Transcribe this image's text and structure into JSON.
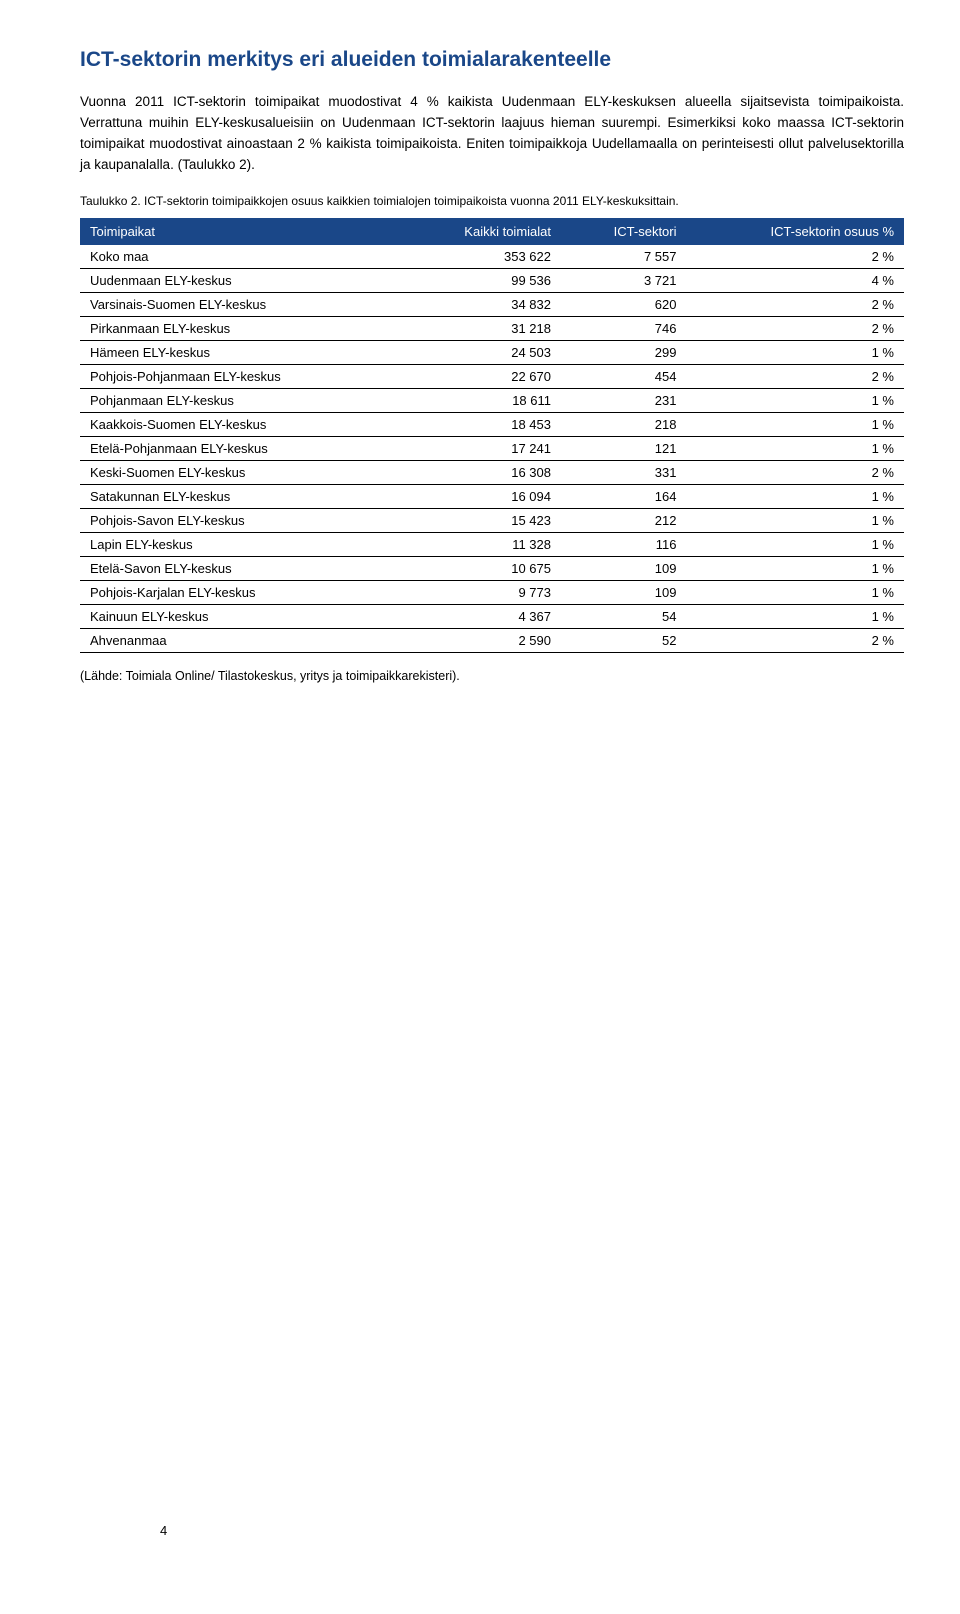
{
  "heading": "ICT-sektorin merkitys eri alueiden toimialarakenteelle",
  "paragraph": "Vuonna 2011 ICT-sektorin toimipaikat muodostivat 4 % kaikista Uudenmaan ELY-keskuksen alueella sijaitsevista toimipaikoista. Verrattuna muihin ELY-keskusalueisiin on Uudenmaan ICT-sektorin laajuus hieman suurempi. Esimerkiksi koko maassa ICT-sektorin toimipaikat muodostivat ainoastaan 2 % kaikista toimipaikoista. Eniten toimipaikkoja Uudellamaalla on perinteisesti ollut palvelusektorilla ja kaupanalalla. (Taulukko 2).",
  "caption": "Taulukko 2.  ICT-sektorin toimipaikkojen osuus kaikkien toimialojen toimipaikoista vuonna 2011 ELY-keskuksittain.",
  "table": {
    "columns": [
      "Toimipaikat",
      "Kaikki toimialat",
      "ICT-sektori",
      "ICT-sektorin osuus %"
    ],
    "rows": [
      [
        "Koko maa",
        "353 622",
        "7 557",
        "2 %"
      ],
      [
        "Uudenmaan ELY-keskus",
        "99 536",
        "3 721",
        "4 %"
      ],
      [
        "Varsinais-Suomen ELY-keskus",
        "34 832",
        "620",
        "2 %"
      ],
      [
        "Pirkanmaan ELY-keskus",
        "31 218",
        "746",
        "2 %"
      ],
      [
        "Hämeen ELY-keskus",
        "24 503",
        "299",
        "1 %"
      ],
      [
        "Pohjois-Pohjanmaan ELY-keskus",
        "22 670",
        "454",
        "2 %"
      ],
      [
        "Pohjanmaan ELY-keskus",
        "18 611",
        "231",
        "1 %"
      ],
      [
        "Kaakkois-Suomen ELY-keskus",
        "18 453",
        "218",
        "1 %"
      ],
      [
        "Etelä-Pohjanmaan ELY-keskus",
        "17 241",
        "121",
        "1 %"
      ],
      [
        "Keski-Suomen ELY-keskus",
        "16 308",
        "331",
        "2 %"
      ],
      [
        "Satakunnan ELY-keskus",
        "16 094",
        "164",
        "1 %"
      ],
      [
        "Pohjois-Savon ELY-keskus",
        "15 423",
        "212",
        "1 %"
      ],
      [
        "Lapin ELY-keskus",
        "11 328",
        "116",
        "1 %"
      ],
      [
        "Etelä-Savon ELY-keskus",
        "10 675",
        "109",
        "1 %"
      ],
      [
        "Pohjois-Karjalan ELY-keskus",
        "9 773",
        "109",
        "1 %"
      ],
      [
        "Kainuun ELY-keskus",
        "4 367",
        "54",
        "1 %"
      ],
      [
        "Ahvenanmaa",
        "2 590",
        "52",
        "2 %"
      ]
    ],
    "header_bg": "#1a4788",
    "header_color": "#ffffff",
    "border_color": "#000000",
    "font_size": 13
  },
  "source": "(Lähde: Toimiala Online/ Tilastokeskus, yritys ja toimipaikkarekisteri).",
  "page_number": "4"
}
